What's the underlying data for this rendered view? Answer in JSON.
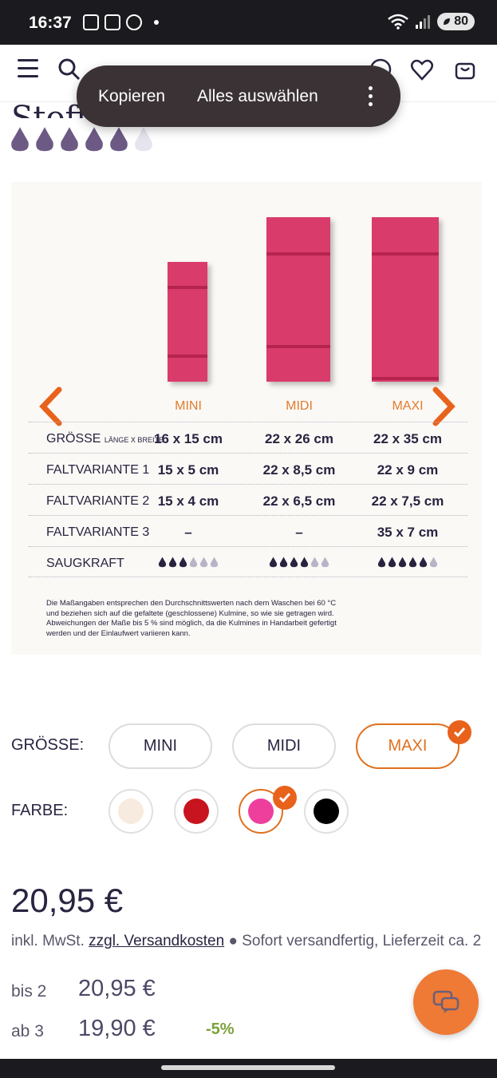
{
  "status_bar": {
    "time": "16:37",
    "battery": "80",
    "wifi_badge": "6"
  },
  "context_menu": {
    "copy": "Kopieren",
    "select_all": "Alles auswählen"
  },
  "product": {
    "title_fragment": "Stoff",
    "rating_drops": 5,
    "rating_max": 6
  },
  "size_chart": {
    "columns": [
      "MINI",
      "MIDI",
      "MAXI"
    ],
    "rows": [
      {
        "label": "GRÖSSE",
        "sublabel": "LÄNGE X BREITE",
        "values": [
          "16 x 15 cm",
          "22 x 26 cm",
          "22 x 35 cm"
        ]
      },
      {
        "label": "FALTVARIANTE 1",
        "values": [
          "15 x 5 cm",
          "22 x 8,5 cm",
          "22 x 9 cm"
        ]
      },
      {
        "label": "FALTVARIANTE 2",
        "values": [
          "15 x 4 cm",
          "22 x 6,5 cm",
          "22 x 7,5 cm"
        ]
      },
      {
        "label": "FALTVARIANTE 3",
        "values": [
          "–",
          "–",
          "35 x 7 cm"
        ]
      }
    ],
    "absorbency": {
      "label": "SAUGKRAFT",
      "filled": [
        3,
        4,
        5
      ],
      "max": 6
    },
    "note": "Die Maßangaben entsprechen den Durchschnittswerten nach dem Waschen bei 60 °C und beziehen sich auf die gefaltete (geschlossene) Kulmine, so wie sie getragen wird. Abweichungen der Maße bis 5 % sind möglich, da die Kulmines in Handarbeit gefertigt werden und der Einlaufwert variieren kann."
  },
  "options": {
    "size_label": "GRÖSSE:",
    "sizes": [
      "MINI",
      "MIDI",
      "MAXI"
    ],
    "selected_size": "MAXI",
    "color_label": "FARBE:",
    "colors": [
      "#f7ebdf",
      "#c8141e",
      "#ee3f9d",
      "#000000"
    ],
    "selected_color_index": 2
  },
  "pricing": {
    "price": "20,95 €",
    "tax_prefix": "inkl. MwSt.",
    "shipping_link": "zzgl. Versandkosten",
    "availability": "Sofort versandfertig, Lieferzeit ca. 2",
    "tiers": [
      {
        "qty": "bis 2",
        "price": "20,95 €"
      },
      {
        "qty": "ab 3",
        "price": "19,90 €",
        "discount": "-5%"
      }
    ]
  },
  "colors": {
    "accent": "#e0701f",
    "text": "#2a2340",
    "drop": "#6c5a85",
    "cloth": "#d93c6a"
  }
}
